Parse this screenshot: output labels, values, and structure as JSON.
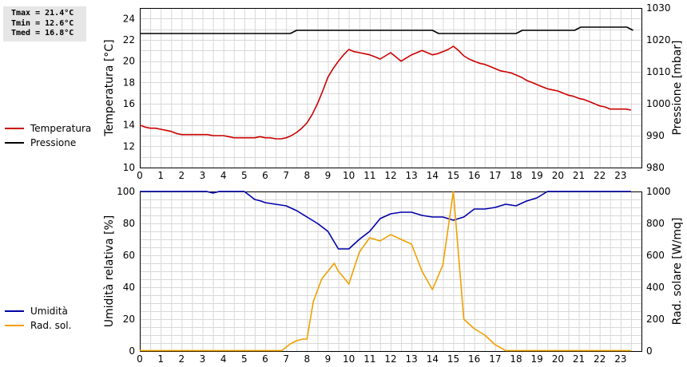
{
  "stats": {
    "tmax": "Tmax = 21.4°C",
    "tmin": "Tmin = 12.6°C",
    "tmed": "Tmed = 16.8°C"
  },
  "legend_top": [
    {
      "label": "Temperatura",
      "color": "#cc0000"
    },
    {
      "label": "Pressione",
      "color": "#000000"
    }
  ],
  "legend_bottom": [
    {
      "label": "Umidità",
      "color": "#0000aa"
    },
    {
      "label": "Rad. sol.",
      "color": "#f0a000"
    }
  ],
  "chart_data": [
    {
      "type": "line",
      "xlim": [
        0,
        24
      ],
      "x_ticks": [
        0,
        1,
        2,
        3,
        4,
        5,
        6,
        7,
        8,
        9,
        10,
        11,
        12,
        13,
        14,
        15,
        16,
        17,
        18,
        19,
        20,
        21,
        22,
        23
      ],
      "ylabel": "Temperatura [°C]",
      "ylim": [
        10,
        25
      ],
      "y_ticks": [
        10,
        12,
        14,
        16,
        18,
        20,
        22,
        24
      ],
      "y2label": "Pressione [mbar]",
      "y2lim": [
        980,
        1030
      ],
      "y2_ticks": [
        980,
        990,
        1000,
        1010,
        1020,
        1030
      ],
      "grid": true,
      "series": [
        {
          "name": "Temperatura",
          "axis": "left",
          "color": "#cc0000",
          "x": [
            0,
            0.25,
            0.5,
            0.75,
            1,
            1.25,
            1.5,
            1.75,
            2,
            2.25,
            2.5,
            2.75,
            3,
            3.25,
            3.5,
            3.75,
            4,
            4.25,
            4.5,
            4.75,
            5,
            5.25,
            5.5,
            5.75,
            6,
            6.25,
            6.5,
            6.75,
            7,
            7.25,
            7.5,
            7.75,
            8,
            8.25,
            8.5,
            8.75,
            9,
            9.25,
            9.5,
            9.75,
            10,
            10.25,
            10.5,
            10.75,
            11,
            11.25,
            11.5,
            11.75,
            12,
            12.25,
            12.5,
            12.75,
            13,
            13.25,
            13.5,
            13.75,
            14,
            14.25,
            14.5,
            14.75,
            15,
            15.25,
            15.5,
            15.75,
            16,
            16.25,
            16.5,
            16.75,
            17,
            17.25,
            17.5,
            17.75,
            18,
            18.25,
            18.5,
            18.75,
            19,
            19.25,
            19.5,
            19.75,
            20,
            20.25,
            20.5,
            20.75,
            21,
            21.25,
            21.5,
            21.75,
            22,
            22.25,
            22.5,
            22.75,
            23,
            23.25,
            23.5
          ],
          "values": [
            14.0,
            13.8,
            13.7,
            13.7,
            13.6,
            13.5,
            13.4,
            13.2,
            13.1,
            13.1,
            13.1,
            13.1,
            13.1,
            13.1,
            13.0,
            13.0,
            13.0,
            12.9,
            12.8,
            12.8,
            12.8,
            12.8,
            12.8,
            12.9,
            12.8,
            12.8,
            12.7,
            12.7,
            12.8,
            13.0,
            13.3,
            13.7,
            14.2,
            15.0,
            16.0,
            17.2,
            18.5,
            19.3,
            20.0,
            20.6,
            21.1,
            20.9,
            20.8,
            20.7,
            20.6,
            20.4,
            20.2,
            20.5,
            20.8,
            20.4,
            20.0,
            20.3,
            20.6,
            20.8,
            21.0,
            20.8,
            20.6,
            20.7,
            20.9,
            21.1,
            21.4,
            21.0,
            20.5,
            20.2,
            20.0,
            19.8,
            19.7,
            19.5,
            19.3,
            19.1,
            19.0,
            18.9,
            18.7,
            18.5,
            18.2,
            18.0,
            17.8,
            17.6,
            17.4,
            17.3,
            17.2,
            17.0,
            16.8,
            16.7,
            16.5,
            16.4,
            16.2,
            16.0,
            15.8,
            15.7,
            15.5,
            15.5,
            15.5,
            15.5,
            15.4
          ]
        },
        {
          "name": "Pressione",
          "axis": "right",
          "color": "#000000",
          "x": [
            0,
            7.2,
            7.5,
            14,
            14.3,
            14.8,
            18,
            18.3,
            20.8,
            21.1,
            23.3,
            23.6
          ],
          "values": [
            1022,
            1022,
            1023,
            1023,
            1022,
            1022,
            1022,
            1023,
            1023,
            1024,
            1024,
            1023
          ]
        }
      ]
    },
    {
      "type": "line",
      "xlim": [
        0,
        24
      ],
      "x_ticks": [
        0,
        1,
        2,
        3,
        4,
        5,
        6,
        7,
        8,
        9,
        10,
        11,
        12,
        13,
        14,
        15,
        16,
        17,
        18,
        19,
        20,
        21,
        22,
        23
      ],
      "ylabel": "Umidità relativa [%]",
      "ylim": [
        0,
        100
      ],
      "y_ticks": [
        0,
        20,
        40,
        60,
        80,
        100
      ],
      "y2label": "Rad. solare [W/mq]",
      "y2lim": [
        0,
        1000
      ],
      "y2_ticks": [
        0,
        200,
        400,
        600,
        800,
        1000
      ],
      "grid": true,
      "series": [
        {
          "name": "Umidità",
          "axis": "left",
          "color": "#0000aa",
          "x": [
            0,
            3.2,
            3.5,
            3.8,
            4.2,
            5,
            5.2,
            5.5,
            5.8,
            6,
            6.5,
            7,
            7.5,
            8,
            8.5,
            9,
            9.5,
            10,
            10.5,
            11,
            11.5,
            12,
            12.5,
            13,
            13.5,
            14,
            14.5,
            15,
            15.5,
            16,
            16.5,
            17,
            17.5,
            18,
            18.5,
            19,
            19.5,
            20,
            20.5,
            21,
            21.5,
            22,
            22.5,
            23,
            23.5
          ],
          "values": [
            100,
            100,
            99,
            100,
            100,
            100,
            98,
            95,
            94,
            93,
            92,
            91,
            88,
            84,
            80,
            75,
            64,
            64,
            70,
            75,
            83,
            86,
            87,
            87,
            85,
            84,
            84,
            82,
            84,
            89,
            89,
            90,
            92,
            91,
            94,
            96,
            100,
            100,
            100,
            100,
            100,
            100,
            100,
            100,
            100
          ]
        },
        {
          "name": "Rad. sol.",
          "axis": "right",
          "color": "#f0a000",
          "x": [
            0,
            1,
            2,
            3,
            4,
            5,
            6,
            6.8,
            7.2,
            7.5,
            7.8,
            8,
            8.3,
            8.7,
            9,
            9.3,
            9.5,
            9.7,
            10,
            10.5,
            11,
            11.5,
            12,
            12.5,
            13,
            13.5,
            14,
            14.5,
            15,
            15.5,
            16,
            16.5,
            17,
            17.5,
            18,
            19,
            20,
            21,
            22,
            23,
            23.5
          ],
          "values": [
            3,
            3,
            3,
            3,
            3,
            3,
            3,
            3,
            45,
            65,
            75,
            75,
            310,
            450,
            500,
            550,
            500,
            470,
            420,
            620,
            710,
            690,
            730,
            700,
            670,
            500,
            385,
            540,
            1000,
            200,
            140,
            100,
            40,
            3,
            3,
            3,
            3,
            3,
            3,
            3,
            3
          ]
        }
      ]
    }
  ]
}
